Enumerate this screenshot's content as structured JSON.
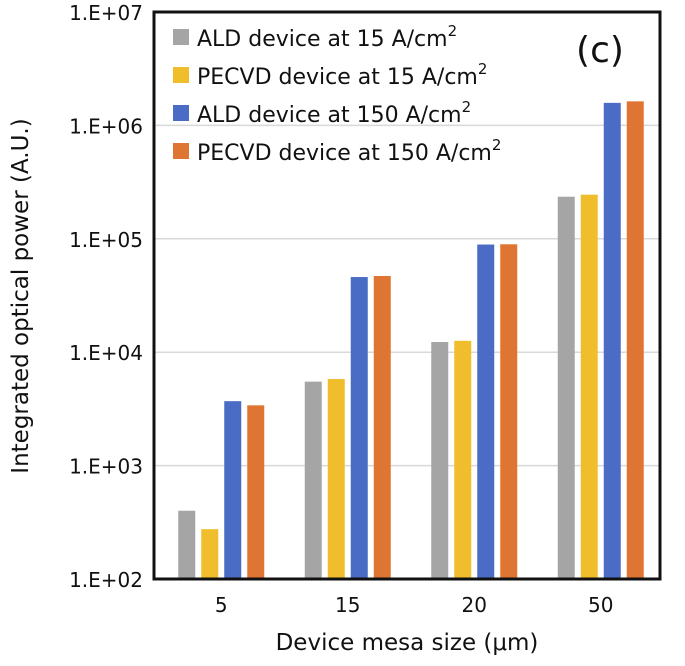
{
  "chart_data": {
    "type": "bar",
    "title": "",
    "panel_label": "(c)",
    "xlabel": "Device mesa size (μm)",
    "ylabel": "Integrated optical power (A.U.)",
    "yscale": "log",
    "ylim": [
      100,
      10000000
    ],
    "yticks": [
      100,
      1000,
      10000,
      100000,
      1000000,
      10000000
    ],
    "ytick_labels": [
      "1.E+02",
      "1.E+03",
      "1.E+04",
      "1.E+05",
      "1.E+06",
      "1.E+07"
    ],
    "grid": "horizontal",
    "legend_position": "top-left",
    "categories": [
      "5",
      "15",
      "20",
      "50"
    ],
    "series": [
      {
        "name": "ALD device at 15 A/cm",
        "superscript": "2",
        "color": "#a5a5a5",
        "values": [
          400,
          5500,
          12300,
          235000
        ]
      },
      {
        "name": "PECVD device at 15 A/cm",
        "superscript": "2",
        "color": "#f0be2d",
        "values": [
          275,
          5800,
          12600,
          245000
        ]
      },
      {
        "name": "ALD device at 150 A/cm",
        "superscript": "2",
        "color": "#4a6cc4",
        "values": [
          3700,
          46000,
          89000,
          1580000
        ]
      },
      {
        "name": "PECVD device at 150 A/cm",
        "superscript": "2",
        "color": "#df7532",
        "values": [
          3400,
          47000,
          89500,
          1630000
        ]
      }
    ]
  }
}
